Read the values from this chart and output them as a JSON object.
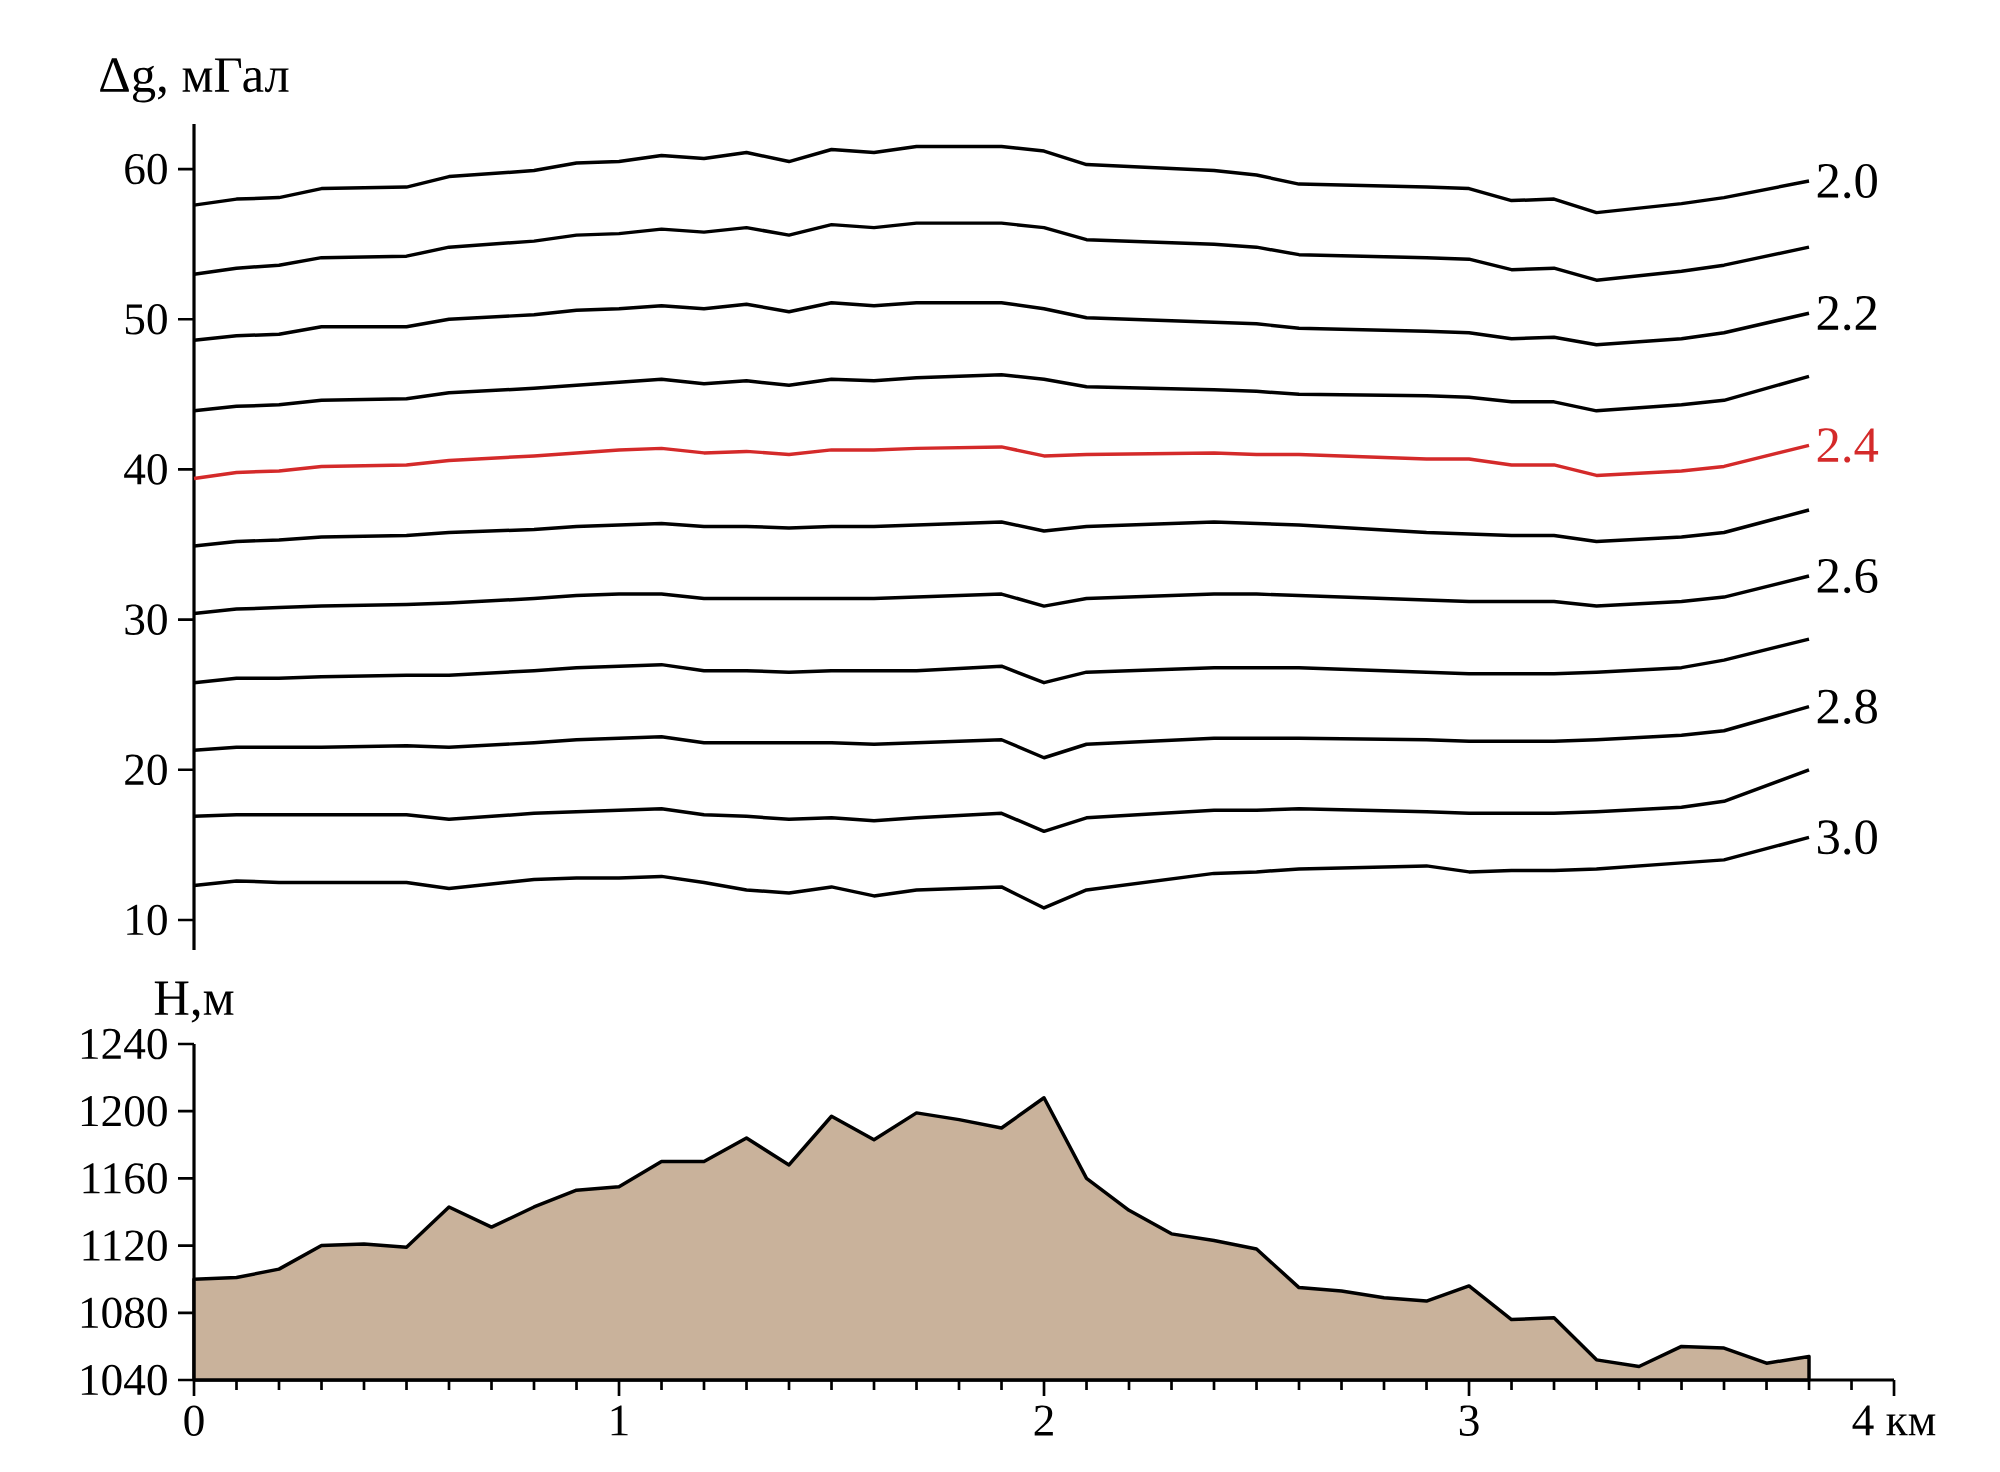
{
  "chart_data": [
    {
      "type": "line",
      "ylabel": "Δg, мГал",
      "xlim": [
        0,
        4
      ],
      "ylim": [
        8,
        63
      ],
      "yticks": [
        10,
        20,
        30,
        40,
        50,
        60
      ],
      "tick_labels": "y",
      "x": [
        0,
        0.1,
        0.2,
        0.3,
        0.5,
        0.6,
        0.8,
        0.9,
        1.0,
        1.1,
        1.2,
        1.3,
        1.4,
        1.5,
        1.6,
        1.7,
        1.9,
        2.0,
        2.1,
        2.4,
        2.5,
        2.6,
        2.9,
        3.0,
        3.1,
        3.2,
        3.3,
        3.5,
        3.6,
        3.8
      ],
      "series": [
        {
          "name": "2.0",
          "color": "#000000",
          "values": [
            57.6,
            58.0,
            58.1,
            58.7,
            58.8,
            59.5,
            59.9,
            60.4,
            60.5,
            60.9,
            60.7,
            61.1,
            60.5,
            61.3,
            61.1,
            61.5,
            61.5,
            61.2,
            60.3,
            59.9,
            59.6,
            59.0,
            58.8,
            58.7,
            57.9,
            58.0,
            57.1,
            57.7,
            58.1,
            59.2
          ]
        },
        {
          "color": "#000000",
          "values": [
            53.0,
            53.4,
            53.6,
            54.1,
            54.2,
            54.8,
            55.2,
            55.6,
            55.7,
            56.0,
            55.8,
            56.1,
            55.6,
            56.3,
            56.1,
            56.4,
            56.4,
            56.1,
            55.3,
            55.0,
            54.8,
            54.3,
            54.1,
            54.0,
            53.3,
            53.4,
            52.6,
            53.2,
            53.6,
            54.8
          ]
        },
        {
          "name": "2.2",
          "color": "#000000",
          "values": [
            48.6,
            48.9,
            49.0,
            49.5,
            49.5,
            50.0,
            50.3,
            50.6,
            50.7,
            50.9,
            50.7,
            51.0,
            50.5,
            51.1,
            50.9,
            51.1,
            51.1,
            50.7,
            50.1,
            49.8,
            49.7,
            49.4,
            49.2,
            49.1,
            48.7,
            48.8,
            48.3,
            48.7,
            49.1,
            50.4
          ]
        },
        {
          "color": "#000000",
          "values": [
            43.9,
            44.2,
            44.3,
            44.6,
            44.7,
            45.1,
            45.4,
            45.6,
            45.8,
            46.0,
            45.7,
            45.9,
            45.6,
            46.0,
            45.9,
            46.1,
            46.3,
            46.0,
            45.5,
            45.3,
            45.2,
            45.0,
            44.9,
            44.8,
            44.5,
            44.5,
            43.9,
            44.3,
            44.6,
            46.2
          ]
        },
        {
          "name": "2.4",
          "color": "#d42a2a",
          "values": [
            39.4,
            39.8,
            39.9,
            40.2,
            40.3,
            40.6,
            40.9,
            41.1,
            41.3,
            41.4,
            41.1,
            41.2,
            41.0,
            41.3,
            41.3,
            41.4,
            41.5,
            40.9,
            41.0,
            41.1,
            41.0,
            41.0,
            40.7,
            40.7,
            40.3,
            40.3,
            39.6,
            39.9,
            40.2,
            41.6
          ]
        },
        {
          "color": "#000000",
          "values": [
            34.9,
            35.2,
            35.3,
            35.5,
            35.6,
            35.8,
            36.0,
            36.2,
            36.3,
            36.4,
            36.2,
            36.2,
            36.1,
            36.2,
            36.2,
            36.3,
            36.5,
            35.9,
            36.2,
            36.5,
            36.4,
            36.3,
            35.8,
            35.7,
            35.6,
            35.6,
            35.2,
            35.5,
            35.8,
            37.3
          ]
        },
        {
          "name": "2.6",
          "color": "#000000",
          "values": [
            30.4,
            30.7,
            30.8,
            30.9,
            31.0,
            31.1,
            31.4,
            31.6,
            31.7,
            31.7,
            31.4,
            31.4,
            31.4,
            31.4,
            31.4,
            31.5,
            31.7,
            30.9,
            31.4,
            31.7,
            31.7,
            31.6,
            31.3,
            31.2,
            31.2,
            31.2,
            30.9,
            31.2,
            31.5,
            32.9
          ]
        },
        {
          "color": "#000000",
          "values": [
            25.8,
            26.1,
            26.1,
            26.2,
            26.3,
            26.3,
            26.6,
            26.8,
            26.9,
            27.0,
            26.6,
            26.6,
            26.5,
            26.6,
            26.6,
            26.6,
            26.9,
            25.8,
            26.5,
            26.8,
            26.8,
            26.8,
            26.5,
            26.4,
            26.4,
            26.4,
            26.5,
            26.8,
            27.3,
            28.7
          ]
        },
        {
          "name": "2.8",
          "color": "#000000",
          "values": [
            21.3,
            21.5,
            21.5,
            21.5,
            21.6,
            21.5,
            21.8,
            22.0,
            22.1,
            22.2,
            21.8,
            21.8,
            21.8,
            21.8,
            21.7,
            21.8,
            22.0,
            20.8,
            21.7,
            22.1,
            22.1,
            22.1,
            22.0,
            21.9,
            21.9,
            21.9,
            22.0,
            22.3,
            22.6,
            24.2
          ]
        },
        {
          "color": "#000000",
          "values": [
            16.9,
            17.0,
            17.0,
            17.0,
            17.0,
            16.7,
            17.1,
            17.2,
            17.3,
            17.4,
            17.0,
            16.9,
            16.7,
            16.8,
            16.6,
            16.8,
            17.1,
            15.9,
            16.8,
            17.3,
            17.3,
            17.4,
            17.2,
            17.1,
            17.1,
            17.1,
            17.2,
            17.5,
            17.9,
            20.0
          ]
        },
        {
          "name": "3.0",
          "color": "#000000",
          "values": [
            12.3,
            12.6,
            12.5,
            12.5,
            12.5,
            12.1,
            12.7,
            12.8,
            12.8,
            12.9,
            12.5,
            12.0,
            11.8,
            12.2,
            11.6,
            12.0,
            12.2,
            10.8,
            12.0,
            13.1,
            13.2,
            13.4,
            13.6,
            13.2,
            13.3,
            13.3,
            13.4,
            13.8,
            14.0,
            15.5
          ]
        }
      ]
    },
    {
      "type": "area",
      "ylabel": "H,м",
      "xlim": [
        0,
        4
      ],
      "ylim": [
        1040,
        1240
      ],
      "xticks": [
        0,
        1,
        2,
        3,
        {
          "value": 4,
          "label": "4 км"
        }
      ],
      "yticks": [
        1040,
        1080,
        1120,
        1160,
        1200,
        1240
      ],
      "x": [
        0,
        0.1,
        0.2,
        0.3,
        0.4,
        0.5,
        0.6,
        0.7,
        0.8,
        0.9,
        1.0,
        1.1,
        1.2,
        1.3,
        1.4,
        1.5,
        1.6,
        1.7,
        1.8,
        1.9,
        2.0,
        2.1,
        2.2,
        2.3,
        2.4,
        2.5,
        2.6,
        2.7,
        2.8,
        2.9,
        3.0,
        3.1,
        3.2,
        3.3,
        3.4,
        3.5,
        3.6,
        3.7,
        3.8
      ],
      "series": [
        {
          "color": "#c9b29b",
          "values": [
            1100,
            1101,
            1106,
            1120,
            1121,
            1119,
            1143,
            1131,
            1143,
            1153,
            1155,
            1170,
            1170,
            1184,
            1168,
            1197,
            1183,
            1199,
            1195,
            1190,
            1208,
            1160,
            1141,
            1127,
            1123,
            1118,
            1095,
            1093,
            1089,
            1087,
            1096,
            1076,
            1077,
            1052,
            1048,
            1060,
            1059,
            1050,
            1054
          ]
        }
      ]
    }
  ]
}
